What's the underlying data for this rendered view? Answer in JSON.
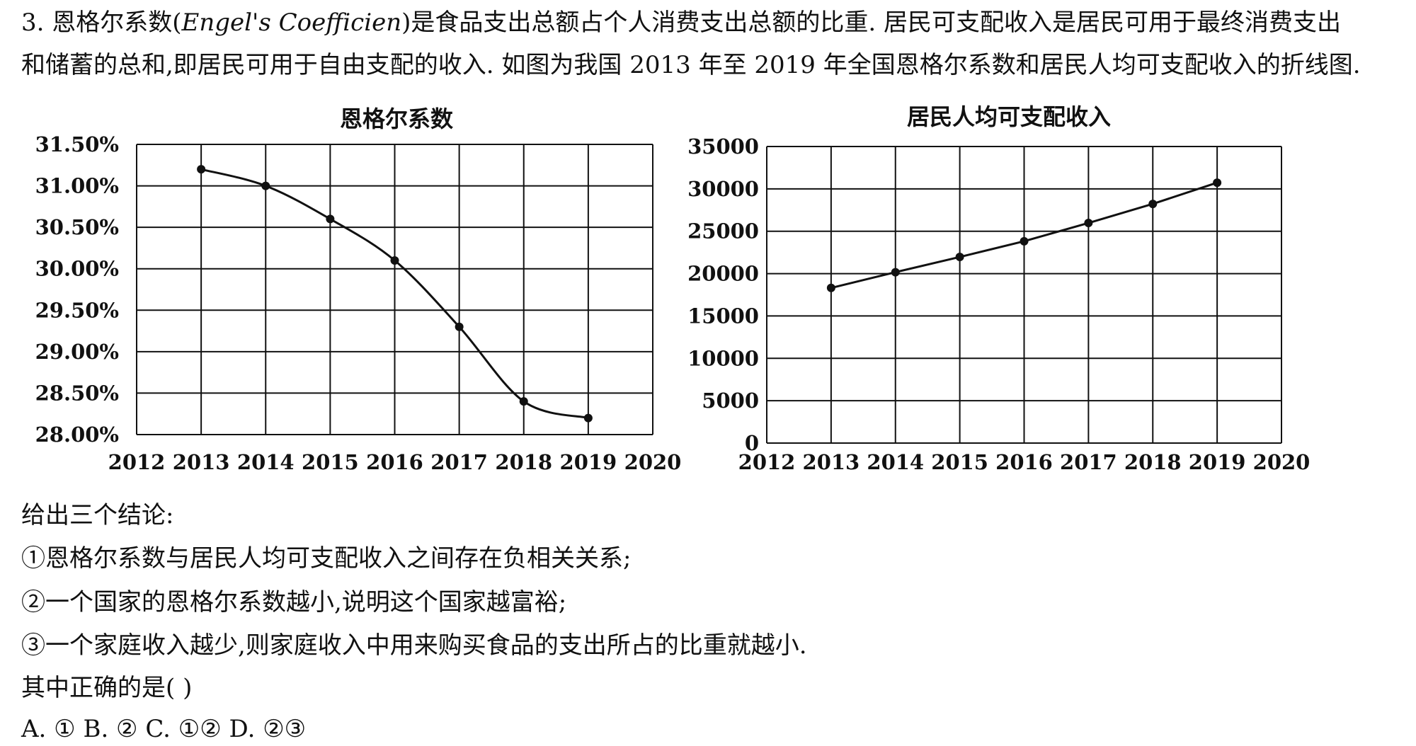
{
  "question": {
    "number": "3.",
    "line1_pre": "恩格尔系数(",
    "line1_term": "Engel's Coefficien",
    "line1_post": ")是食品支出总额占个人消费支出总额的比重. 居民可支配收入是居民可用于最终消费支出",
    "line2": "和储蓄的总和,即居民可用于自由支配的收入. 如图为我国 2013 年至 2019 年全国恩格尔系数和居民人均可支配收入的折线图.",
    "prompt": "给出三个结论:",
    "conclusions": [
      "①恩格尔系数与居民人均可支配收入之间存在负相关关系;",
      "②一个国家的恩格尔系数越小,说明这个国家越富裕;",
      "③一个家庭收入越少,则家庭收入中用来购买食品的支出所占的比重就越小."
    ],
    "ask": "其中正确的是(      )",
    "options": "A. ① B. ② C. ①② D. ②③"
  },
  "chart_data": [
    {
      "type": "line",
      "title": "恩格尔系数",
      "x": [
        2013,
        2014,
        2015,
        2016,
        2017,
        2018,
        2019
      ],
      "values": [
        31.2,
        31.0,
        30.6,
        30.1,
        29.3,
        28.4,
        28.2
      ],
      "xlim": [
        2012,
        2020
      ],
      "ylim": [
        28.0,
        31.5
      ],
      "x_ticks": [
        "2012",
        "2013",
        "2014",
        "2015",
        "2016",
        "2017",
        "2018",
        "2019",
        "2020"
      ],
      "y_ticks": [
        "28.00%",
        "28.50%",
        "29.00%",
        "29.50%",
        "30.00%",
        "30.50%",
        "31.00%",
        "31.50%"
      ],
      "grid": true,
      "smooth": true
    },
    {
      "type": "line",
      "title": "居民人均可支配收入",
      "x": [
        2013,
        2014,
        2015,
        2016,
        2017,
        2018,
        2019
      ],
      "values": [
        18311,
        20167,
        21966,
        23821,
        25974,
        28228,
        30733
      ],
      "xlim": [
        2012,
        2020
      ],
      "ylim": [
        0,
        35000
      ],
      "x_ticks": [
        "2012",
        "2013",
        "2014",
        "2015",
        "2016",
        "2017",
        "2018",
        "2019",
        "2020"
      ],
      "y_ticks": [
        "0",
        "5000",
        "10000",
        "15000",
        "20000",
        "25000",
        "30000",
        "35000"
      ],
      "grid": true,
      "smooth": false
    }
  ]
}
